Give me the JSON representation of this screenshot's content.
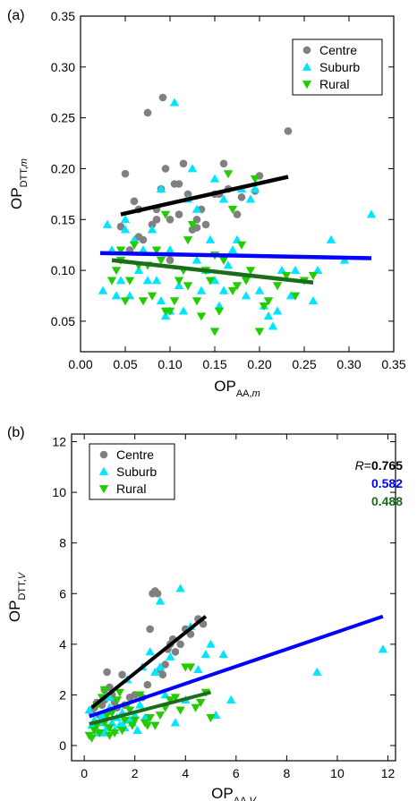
{
  "colors": {
    "centre": "#808080",
    "suburb": "#00e5ff",
    "rural": "#22cc00",
    "centre_fit": "#000000",
    "suburb_fit": "#0000ff",
    "rural_fit": "#1a6e1a"
  },
  "chart_data": [
    {
      "type": "scatter",
      "panel_label": "(a)",
      "xlabel": {
        "main": "OP",
        "sub": "AA,",
        "subit": "m"
      },
      "ylabel": {
        "main": "OP",
        "sub": "DTT,",
        "subit": "m"
      },
      "xlim": [
        0.0,
        0.35
      ],
      "ylim": [
        0.02,
        0.35
      ],
      "xticks": [
        0.0,
        0.05,
        0.1,
        0.15,
        0.2,
        0.25,
        0.3,
        0.35
      ],
      "yticks": [
        0.05,
        0.1,
        0.15,
        0.2,
        0.25,
        0.3,
        0.35
      ],
      "tick_decimals": 2,
      "legend_position": "top-right",
      "series": [
        {
          "name": "Centre",
          "marker": "circle",
          "color": "#808080",
          "x": [
            0.045,
            0.05,
            0.055,
            0.06,
            0.065,
            0.07,
            0.075,
            0.08,
            0.085,
            0.09,
            0.092,
            0.095,
            0.1,
            0.1,
            0.105,
            0.11,
            0.115,
            0.12,
            0.125,
            0.13,
            0.13,
            0.135,
            0.14,
            0.15,
            0.155,
            0.16,
            0.165,
            0.175,
            0.18,
            0.195,
            0.2,
            0.232,
            0.085,
            0.065,
            0.11
          ],
          "y": [
            0.143,
            0.195,
            0.12,
            0.168,
            0.16,
            0.13,
            0.255,
            0.145,
            0.15,
            0.18,
            0.27,
            0.2,
            0.11,
            0.15,
            0.185,
            0.185,
            0.205,
            0.175,
            0.14,
            0.142,
            0.15,
            0.16,
            0.145,
            0.175,
            0.175,
            0.205,
            0.18,
            0.155,
            0.172,
            0.178,
            0.193,
            0.237,
            0.16,
            0.133,
            0.155
          ]
        },
        {
          "name": "Suburb",
          "marker": "triangle-up",
          "color": "#00e5ff",
          "x": [
            0.025,
            0.03,
            0.035,
            0.04,
            0.045,
            0.05,
            0.055,
            0.06,
            0.065,
            0.07,
            0.075,
            0.08,
            0.085,
            0.09,
            0.095,
            0.1,
            0.105,
            0.11,
            0.115,
            0.12,
            0.125,
            0.13,
            0.135,
            0.14,
            0.145,
            0.15,
            0.155,
            0.16,
            0.165,
            0.17,
            0.175,
            0.18,
            0.185,
            0.19,
            0.195,
            0.2,
            0.205,
            0.21,
            0.215,
            0.22,
            0.225,
            0.235,
            0.24,
            0.26,
            0.265,
            0.28,
            0.295,
            0.325,
            0.05,
            0.09,
            0.1,
            0.15,
            0.13,
            0.16
          ],
          "y": [
            0.08,
            0.145,
            0.12,
            0.075,
            0.09,
            0.14,
            0.075,
            0.13,
            0.1,
            0.12,
            0.09,
            0.14,
            0.09,
            0.07,
            0.055,
            0.12,
            0.265,
            0.085,
            0.06,
            0.17,
            0.2,
            0.11,
            0.08,
            0.1,
            0.13,
            0.19,
            0.065,
            0.17,
            0.105,
            0.12,
            0.13,
            0.18,
            0.075,
            0.17,
            0.18,
            0.08,
            0.065,
            0.055,
            0.045,
            0.06,
            0.1,
            0.075,
            0.1,
            0.07,
            0.1,
            0.13,
            0.11,
            0.155,
            0.15,
            0.18,
            0.06,
            0.09,
            0.16,
            0.08
          ]
        },
        {
          "name": "Rural",
          "marker": "triangle-down",
          "color": "#22cc00",
          "x": [
            0.035,
            0.04,
            0.045,
            0.05,
            0.055,
            0.06,
            0.065,
            0.07,
            0.075,
            0.08,
            0.085,
            0.09,
            0.095,
            0.1,
            0.105,
            0.11,
            0.115,
            0.12,
            0.125,
            0.13,
            0.135,
            0.14,
            0.145,
            0.15,
            0.155,
            0.16,
            0.165,
            0.17,
            0.175,
            0.18,
            0.185,
            0.19,
            0.195,
            0.2,
            0.205,
            0.21,
            0.22,
            0.23,
            0.24,
            0.25,
            0.26,
            0.045,
            0.095,
            0.12,
            0.15,
            0.17
          ],
          "y": [
            0.09,
            0.1,
            0.11,
            0.07,
            0.09,
            0.125,
            0.105,
            0.07,
            0.105,
            0.075,
            0.12,
            0.11,
            0.155,
            0.06,
            0.07,
            0.09,
            0.1,
            0.13,
            0.145,
            0.07,
            0.055,
            0.1,
            0.09,
            0.04,
            0.06,
            0.11,
            0.195,
            0.08,
            0.085,
            0.125,
            0.09,
            0.1,
            0.19,
            0.04,
            0.065,
            0.07,
            0.085,
            0.095,
            0.075,
            0.09,
            0.095,
            0.12,
            0.06,
            0.085,
            0.115,
            0.16
          ]
        }
      ],
      "fits": [
        {
          "series": "Centre",
          "x": [
            0.045,
            0.232
          ],
          "y": [
            0.155,
            0.192
          ]
        },
        {
          "series": "Suburb",
          "x": [
            0.022,
            0.325
          ],
          "y": [
            0.117,
            0.112
          ]
        },
        {
          "series": "Rural",
          "x": [
            0.035,
            0.26
          ],
          "y": [
            0.11,
            0.088
          ]
        }
      ]
    },
    {
      "type": "scatter",
      "panel_label": "(b)",
      "xlabel": {
        "main": "OP",
        "sub": "AA,",
        "subit": "V"
      },
      "ylabel": {
        "main": "OP",
        "sub": "DTT,",
        "subit": "V"
      },
      "xlim": [
        -0.5,
        12.3
      ],
      "ylim": [
        -0.6,
        12.3
      ],
      "xticks": [
        0,
        2,
        4,
        6,
        8,
        10,
        12
      ],
      "yticks": [
        0,
        2,
        4,
        6,
        8,
        10,
        12
      ],
      "tick_decimals": 0,
      "legend_position": "top-left",
      "correlation": {
        "prefix": "R",
        "eq": "=",
        "values": [
          "0.765",
          "0.582",
          "0.488"
        ]
      },
      "series": [
        {
          "name": "Centre",
          "marker": "circle",
          "color": "#808080",
          "x": [
            0.3,
            0.4,
            0.5,
            0.6,
            0.7,
            0.8,
            0.9,
            1.0,
            1.1,
            1.3,
            1.5,
            1.6,
            1.8,
            2.0,
            2.3,
            2.5,
            2.6,
            2.7,
            2.8,
            3.0,
            3.1,
            3.2,
            3.3,
            3.5,
            3.6,
            3.8,
            4.0,
            4.2,
            4.5,
            4.7,
            0.8,
            1.2,
            2.9,
            3.4
          ],
          "y": [
            1.3,
            1.5,
            1.7,
            1.2,
            1.6,
            1.8,
            2.9,
            2.3,
            2.0,
            1.5,
            2.8,
            1.6,
            1.9,
            2.0,
            1.9,
            2.4,
            4.6,
            6.0,
            6.1,
            3.0,
            2.8,
            3.2,
            3.8,
            4.2,
            3.7,
            4.0,
            4.6,
            4.4,
            5.0,
            4.8,
            2.2,
            1.7,
            6.0,
            4.0
          ]
        },
        {
          "name": "Suburb",
          "marker": "triangle-up",
          "color": "#00e5ff",
          "x": [
            0.2,
            0.3,
            0.4,
            0.5,
            0.6,
            0.7,
            0.8,
            0.9,
            1.0,
            1.1,
            1.2,
            1.3,
            1.4,
            1.5,
            1.6,
            1.7,
            1.8,
            1.9,
            2.0,
            2.1,
            2.2,
            2.3,
            2.4,
            2.6,
            2.8,
            3.0,
            3.2,
            3.4,
            3.6,
            3.8,
            4.0,
            4.2,
            4.5,
            4.8,
            5.0,
            5.2,
            5.5,
            5.8,
            9.2,
            11.8,
            0.6,
            1.0,
            1.5,
            3.0
          ],
          "y": [
            1.4,
            0.8,
            1.0,
            0.6,
            0.9,
            1.2,
            0.5,
            0.7,
            1.5,
            0.9,
            0.6,
            1.1,
            0.8,
            1.3,
            0.7,
            2.6,
            1.0,
            0.9,
            1.2,
            0.6,
            1.6,
            3.1,
            1.1,
            3.7,
            2.9,
            5.7,
            2.0,
            3.5,
            0.9,
            6.2,
            1.8,
            4.7,
            3.0,
            3.6,
            4.0,
            1.2,
            3.6,
            1.8,
            2.9,
            3.8,
            0.5,
            1.9,
            0.8,
            3.1
          ]
        },
        {
          "name": "Rural",
          "marker": "triangle-down",
          "color": "#22cc00",
          "x": [
            0.2,
            0.3,
            0.4,
            0.5,
            0.6,
            0.7,
            0.8,
            0.9,
            1.0,
            1.1,
            1.2,
            1.3,
            1.4,
            1.5,
            1.6,
            1.7,
            1.8,
            1.9,
            2.0,
            2.2,
            2.4,
            2.6,
            2.8,
            3.0,
            3.2,
            3.4,
            3.6,
            3.8,
            4.0,
            4.2,
            4.4,
            4.6,
            4.8,
            5.0,
            0.5,
            0.8,
            1.0,
            2.5
          ],
          "y": [
            0.4,
            0.3,
            0.6,
            0.8,
            0.5,
            1.9,
            0.9,
            1.2,
            0.7,
            1.3,
            0.5,
            1.8,
            2.1,
            0.6,
            1.0,
            1.6,
            1.4,
            0.8,
            1.0,
            2.0,
            0.9,
            1.1,
            0.8,
            1.2,
            1.5,
            1.8,
            1.9,
            1.4,
            3.1,
            3.1,
            1.5,
            1.7,
            2.1,
            1.1,
            1.6,
            2.2,
            0.4,
            0.8
          ]
        }
      ],
      "fits": [
        {
          "series": "Centre",
          "x": [
            0.3,
            4.8
          ],
          "y": [
            1.5,
            5.1
          ]
        },
        {
          "series": "Suburb",
          "x": [
            0.2,
            11.8
          ],
          "y": [
            1.15,
            5.1
          ]
        },
        {
          "series": "Rural",
          "x": [
            0.2,
            5.0
          ],
          "y": [
            0.85,
            2.1
          ]
        }
      ]
    }
  ]
}
